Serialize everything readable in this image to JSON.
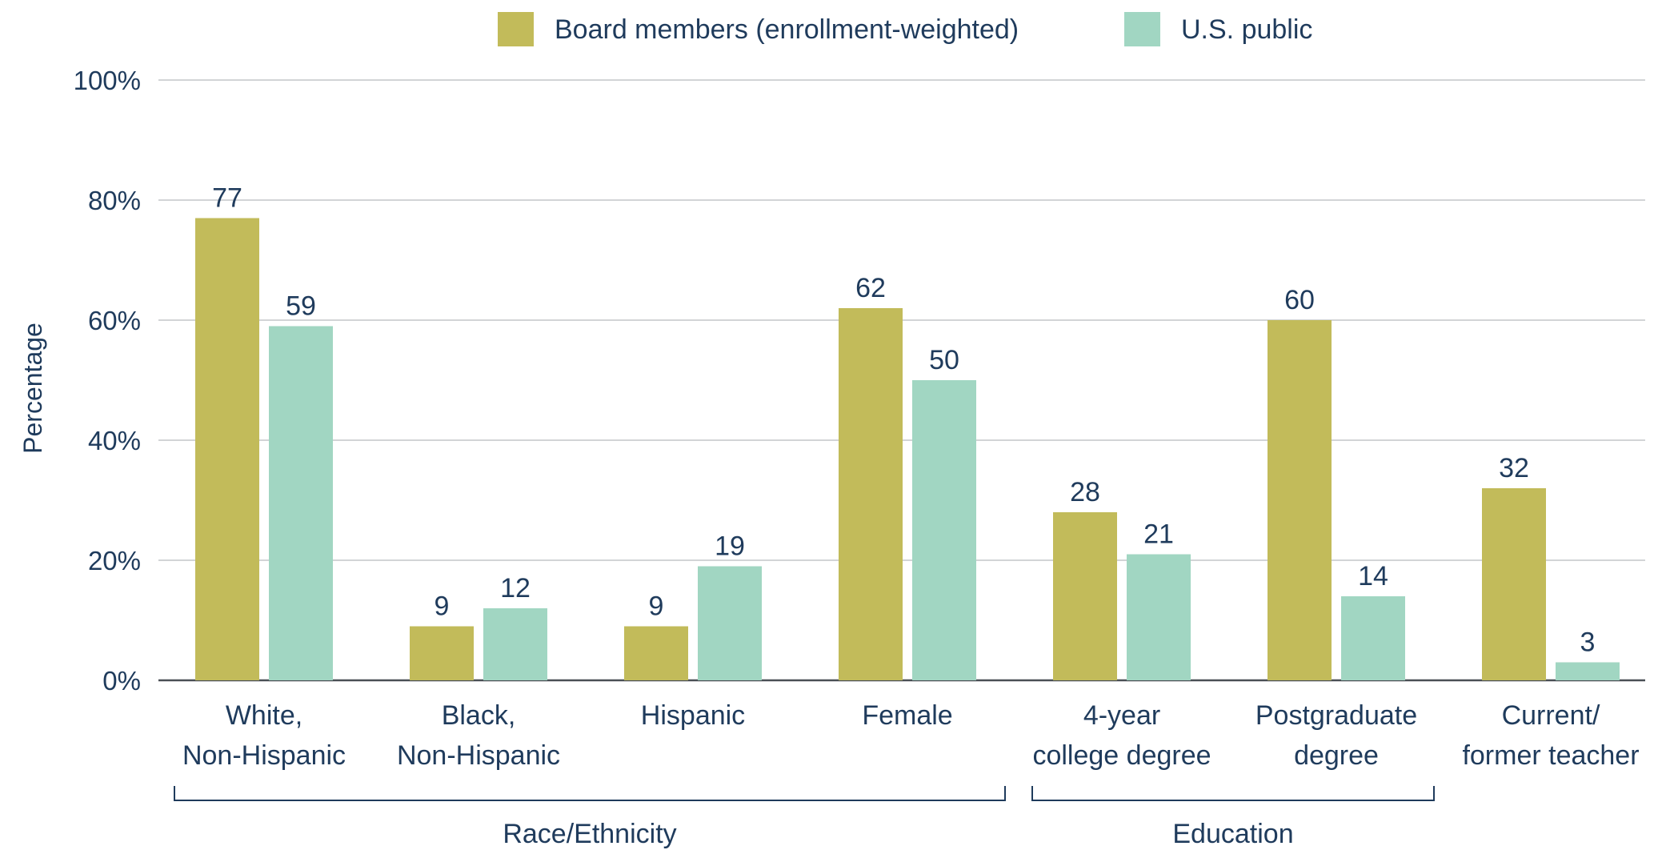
{
  "chart_data": {
    "type": "bar",
    "ylabel": "Percentage",
    "ylim": [
      0,
      100
    ],
    "yticks": [
      "0%",
      "20%",
      "40%",
      "60%",
      "80%",
      "100%"
    ],
    "grid": true,
    "legend_position": "top-center",
    "categories": [
      [
        "White,",
        "Non-Hispanic"
      ],
      [
        "Black,",
        "Non-Hispanic"
      ],
      [
        "Hispanic"
      ],
      [
        "Female"
      ],
      [
        "4-year",
        "college degree"
      ],
      [
        "Postgraduate",
        "degree"
      ],
      [
        "Current/",
        "former teacher"
      ]
    ],
    "series": [
      {
        "name": "Board members (enrollment-weighted)",
        "color": "#c2bb5a",
        "values": [
          77,
          9,
          9,
          62,
          28,
          60,
          32
        ]
      },
      {
        "name": "U.S. public",
        "color": "#a1d6c2",
        "values": [
          59,
          12,
          19,
          50,
          21,
          14,
          3
        ]
      }
    ],
    "groups": [
      {
        "label": "Race/Ethnicity",
        "from": 0,
        "to": 3
      },
      {
        "label": "Education",
        "from": 4,
        "to": 5
      }
    ]
  }
}
